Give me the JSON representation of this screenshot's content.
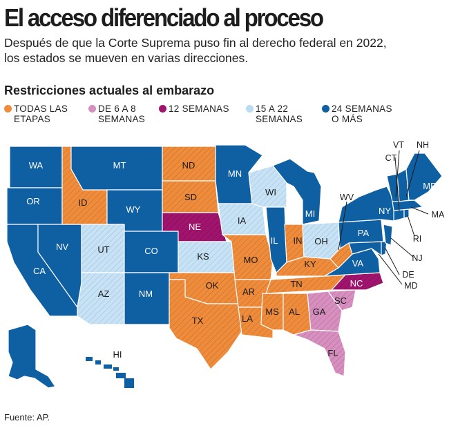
{
  "header": {
    "title": "El acceso diferenciado al proceso",
    "subtitle_line1": "Después de que la Corte Suprema puso fin al derecho federal en 2022,",
    "subtitle_line2": "los estados se mueven en varias direcciones."
  },
  "section_title": "Restricciones actuales al embarazo",
  "legend": [
    {
      "key": "all",
      "line1": "TODAS LAS",
      "line2": "ETAPAS",
      "color": "#ef8c3b"
    },
    {
      "key": "w6_8",
      "line1": "DE 6 A 8",
      "line2": "SEMANAS",
      "color": "#d68fbe"
    },
    {
      "key": "w12",
      "line1": "12 SEMANAS",
      "line2": "",
      "color": "#a0146e"
    },
    {
      "key": "w15_22",
      "line1": "15 A 22",
      "line2": "SEMANAS",
      "color": "#b9dcf2"
    },
    {
      "key": "w24",
      "line1": "24 SEMANAS",
      "line2": "O MÁS",
      "color": "#0f5fa3"
    }
  ],
  "states": {
    "WA": "24 SEMANAS O MÁS",
    "OR": "24 SEMANAS O MÁS",
    "CA": "24 SEMANAS O MÁS",
    "NV": "24 SEMANAS O MÁS",
    "ID": "TODAS LAS ETAPAS",
    "MT": "24 SEMANAS O MÁS",
    "WY": "24 SEMANAS O MÁS",
    "UT": "15 A 22 SEMANAS",
    "AZ": "15 A 22 SEMANAS",
    "CO": "24 SEMANAS O MÁS",
    "NM": "24 SEMANAS O MÁS",
    "ND": "TODAS LAS ETAPAS",
    "SD": "TODAS LAS ETAPAS",
    "NE": "12 SEMANAS",
    "KS": "15 A 22 SEMANAS",
    "OK": "TODAS LAS ETAPAS",
    "TX": "TODAS LAS ETAPAS",
    "MN": "24 SEMANAS O MÁS",
    "IA": "15 A 22 SEMANAS",
    "MO": "TODAS LAS ETAPAS",
    "AR": "TODAS LAS ETAPAS",
    "LA": "TODAS LAS ETAPAS",
    "WI": "15 A 22 SEMANAS",
    "IL": "24 SEMANAS O MÁS",
    "MI": "24 SEMANAS O MÁS",
    "IN": "TODAS LAS ETAPAS",
    "OH": "15 A 22 SEMANAS",
    "KY": "TODAS LAS ETAPAS",
    "TN": "TODAS LAS ETAPAS",
    "MS": "TODAS LAS ETAPAS",
    "AL": "TODAS LAS ETAPAS",
    "GA": "DE 6 A 8 SEMANAS",
    "FL": "DE 6 A 8 SEMANAS",
    "SC": "DE 6 A 8 SEMANAS",
    "NC": "12 SEMANAS",
    "VA": "24 SEMANAS O MÁS",
    "WV": "TODAS LAS ETAPAS",
    "PA": "24 SEMANAS O MÁS",
    "NY": "24 SEMANAS O MÁS",
    "ME": "24 SEMANAS O MÁS",
    "VT": "24 SEMANAS O MÁS",
    "NH": "24 SEMANAS O MÁS",
    "MA": "24 SEMANAS O MÁS",
    "CT": "24 SEMANAS O MÁS",
    "RI": "24 SEMANAS O MÁS",
    "NJ": "24 SEMANAS O MÁS",
    "DE": "24 SEMANAS O MÁS",
    "MD": "24 SEMANAS O MÁS",
    "AK": "24 SEMANAS O MÁS",
    "HI": "24 SEMANAS O MÁS"
  },
  "state_labels": {
    "WA": "WA",
    "OR": "OR",
    "CA": "CA",
    "NV": "NV",
    "ID": "ID",
    "MT": "MT",
    "WY": "WY",
    "UT": "UT",
    "AZ": "AZ",
    "CO": "CO",
    "NM": "NM",
    "ND": "ND",
    "SD": "SD",
    "NE": "NE",
    "KS": "KS",
    "OK": "OK",
    "TX": "TX",
    "MN": "MN",
    "IA": "IA",
    "MO": "MO",
    "AR": "AR",
    "LA": "LA",
    "WI": "WI",
    "IL": "IL",
    "MI": "MI",
    "IN": "IN",
    "OH": "OH",
    "KY": "KY",
    "TN": "TN",
    "MS": "MS",
    "AL": "AL",
    "GA": "GA",
    "FL": "FL",
    "SC": "SC",
    "NC": "NC",
    "VA": "VA",
    "PA": "PA",
    "NY": "NY",
    "ME": "ME",
    "HI": "HI",
    "WV": "WV",
    "VT": "VT",
    "NH": "NH",
    "CT": "CT",
    "MA": "MA",
    "RI": "RI",
    "NJ": "NJ",
    "DE": "DE",
    "MD": "MD"
  },
  "source": "Fuente: AP."
}
